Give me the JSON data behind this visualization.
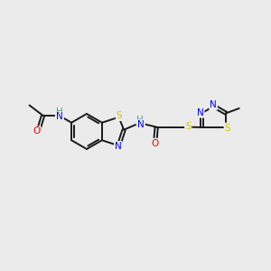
{
  "background_color": "#ebebeb",
  "bond_color": "#1a1a1a",
  "atom_colors": {
    "C": "#1a1a1a",
    "H": "#4a9a8a",
    "N": "#0000ee",
    "O": "#ee0000",
    "S": "#cccc00"
  },
  "bond_width": 1.4,
  "dbo": 0.055,
  "figsize": [
    3.0,
    3.0
  ],
  "dpi": 100
}
